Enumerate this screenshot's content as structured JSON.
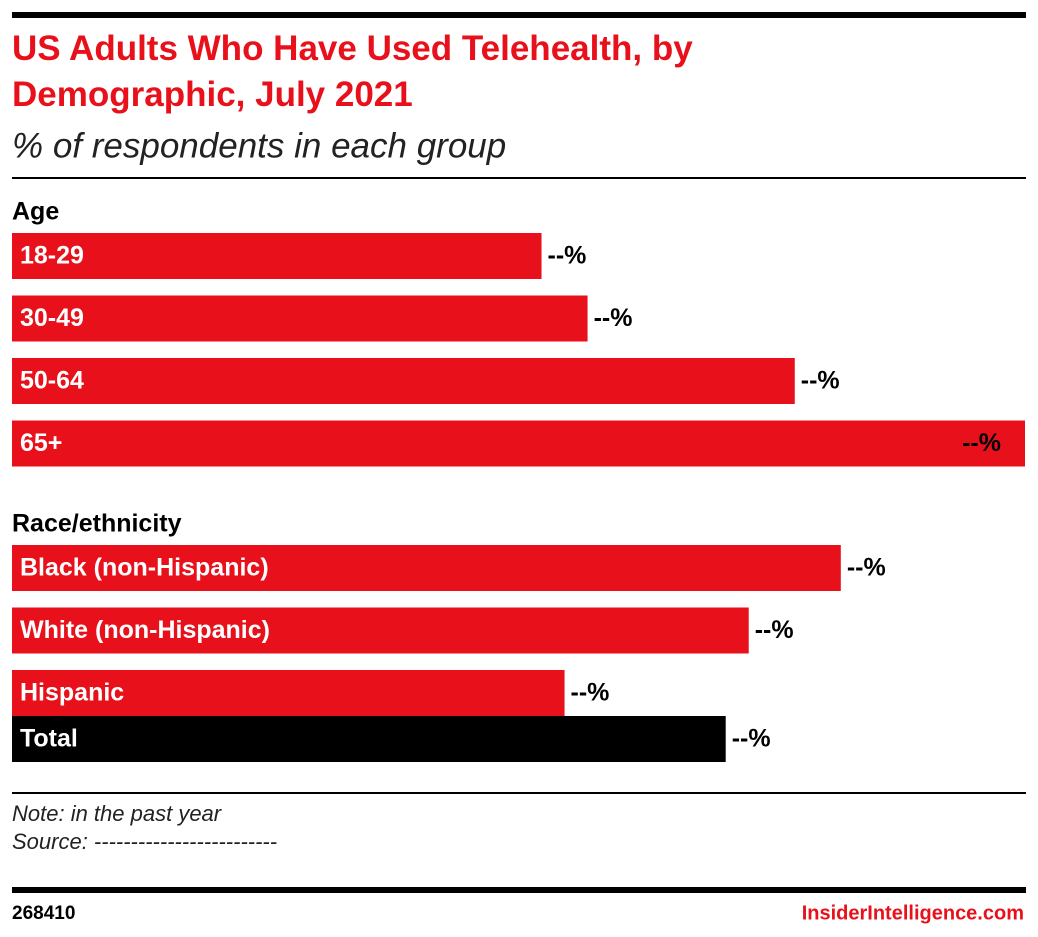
{
  "chart_data": {
    "type": "bar",
    "orientation": "horizontal",
    "title": "US Adults Who Have Used Telehealth, by Demographic, July 2021",
    "subtitle": "% of respondents in each group",
    "color": "#e8101a",
    "groups": [
      {
        "name": "Age",
        "categories": [
          "18-29",
          "30-49",
          "50-64",
          "65+"
        ],
        "values": [
          23,
          25,
          34,
          44
        ],
        "value_labels": [
          "--%",
          "--%",
          "--%",
          "--%"
        ]
      },
      {
        "name": "Race/ethnicity",
        "categories": [
          "Black (non-Hispanic)",
          "White (non-Hispanic)",
          "Hispanic"
        ],
        "values": [
          36,
          32,
          24
        ],
        "value_labels": [
          "--%",
          "--%",
          "--%"
        ]
      }
    ],
    "total": {
      "category": "Total",
      "value": 31,
      "value_label": "--%",
      "color": "#000000"
    },
    "note": "Note: in the past year",
    "source": "Source: -------------------------",
    "chart_id": "268410",
    "brand": "InsiderIntelligence.com"
  }
}
